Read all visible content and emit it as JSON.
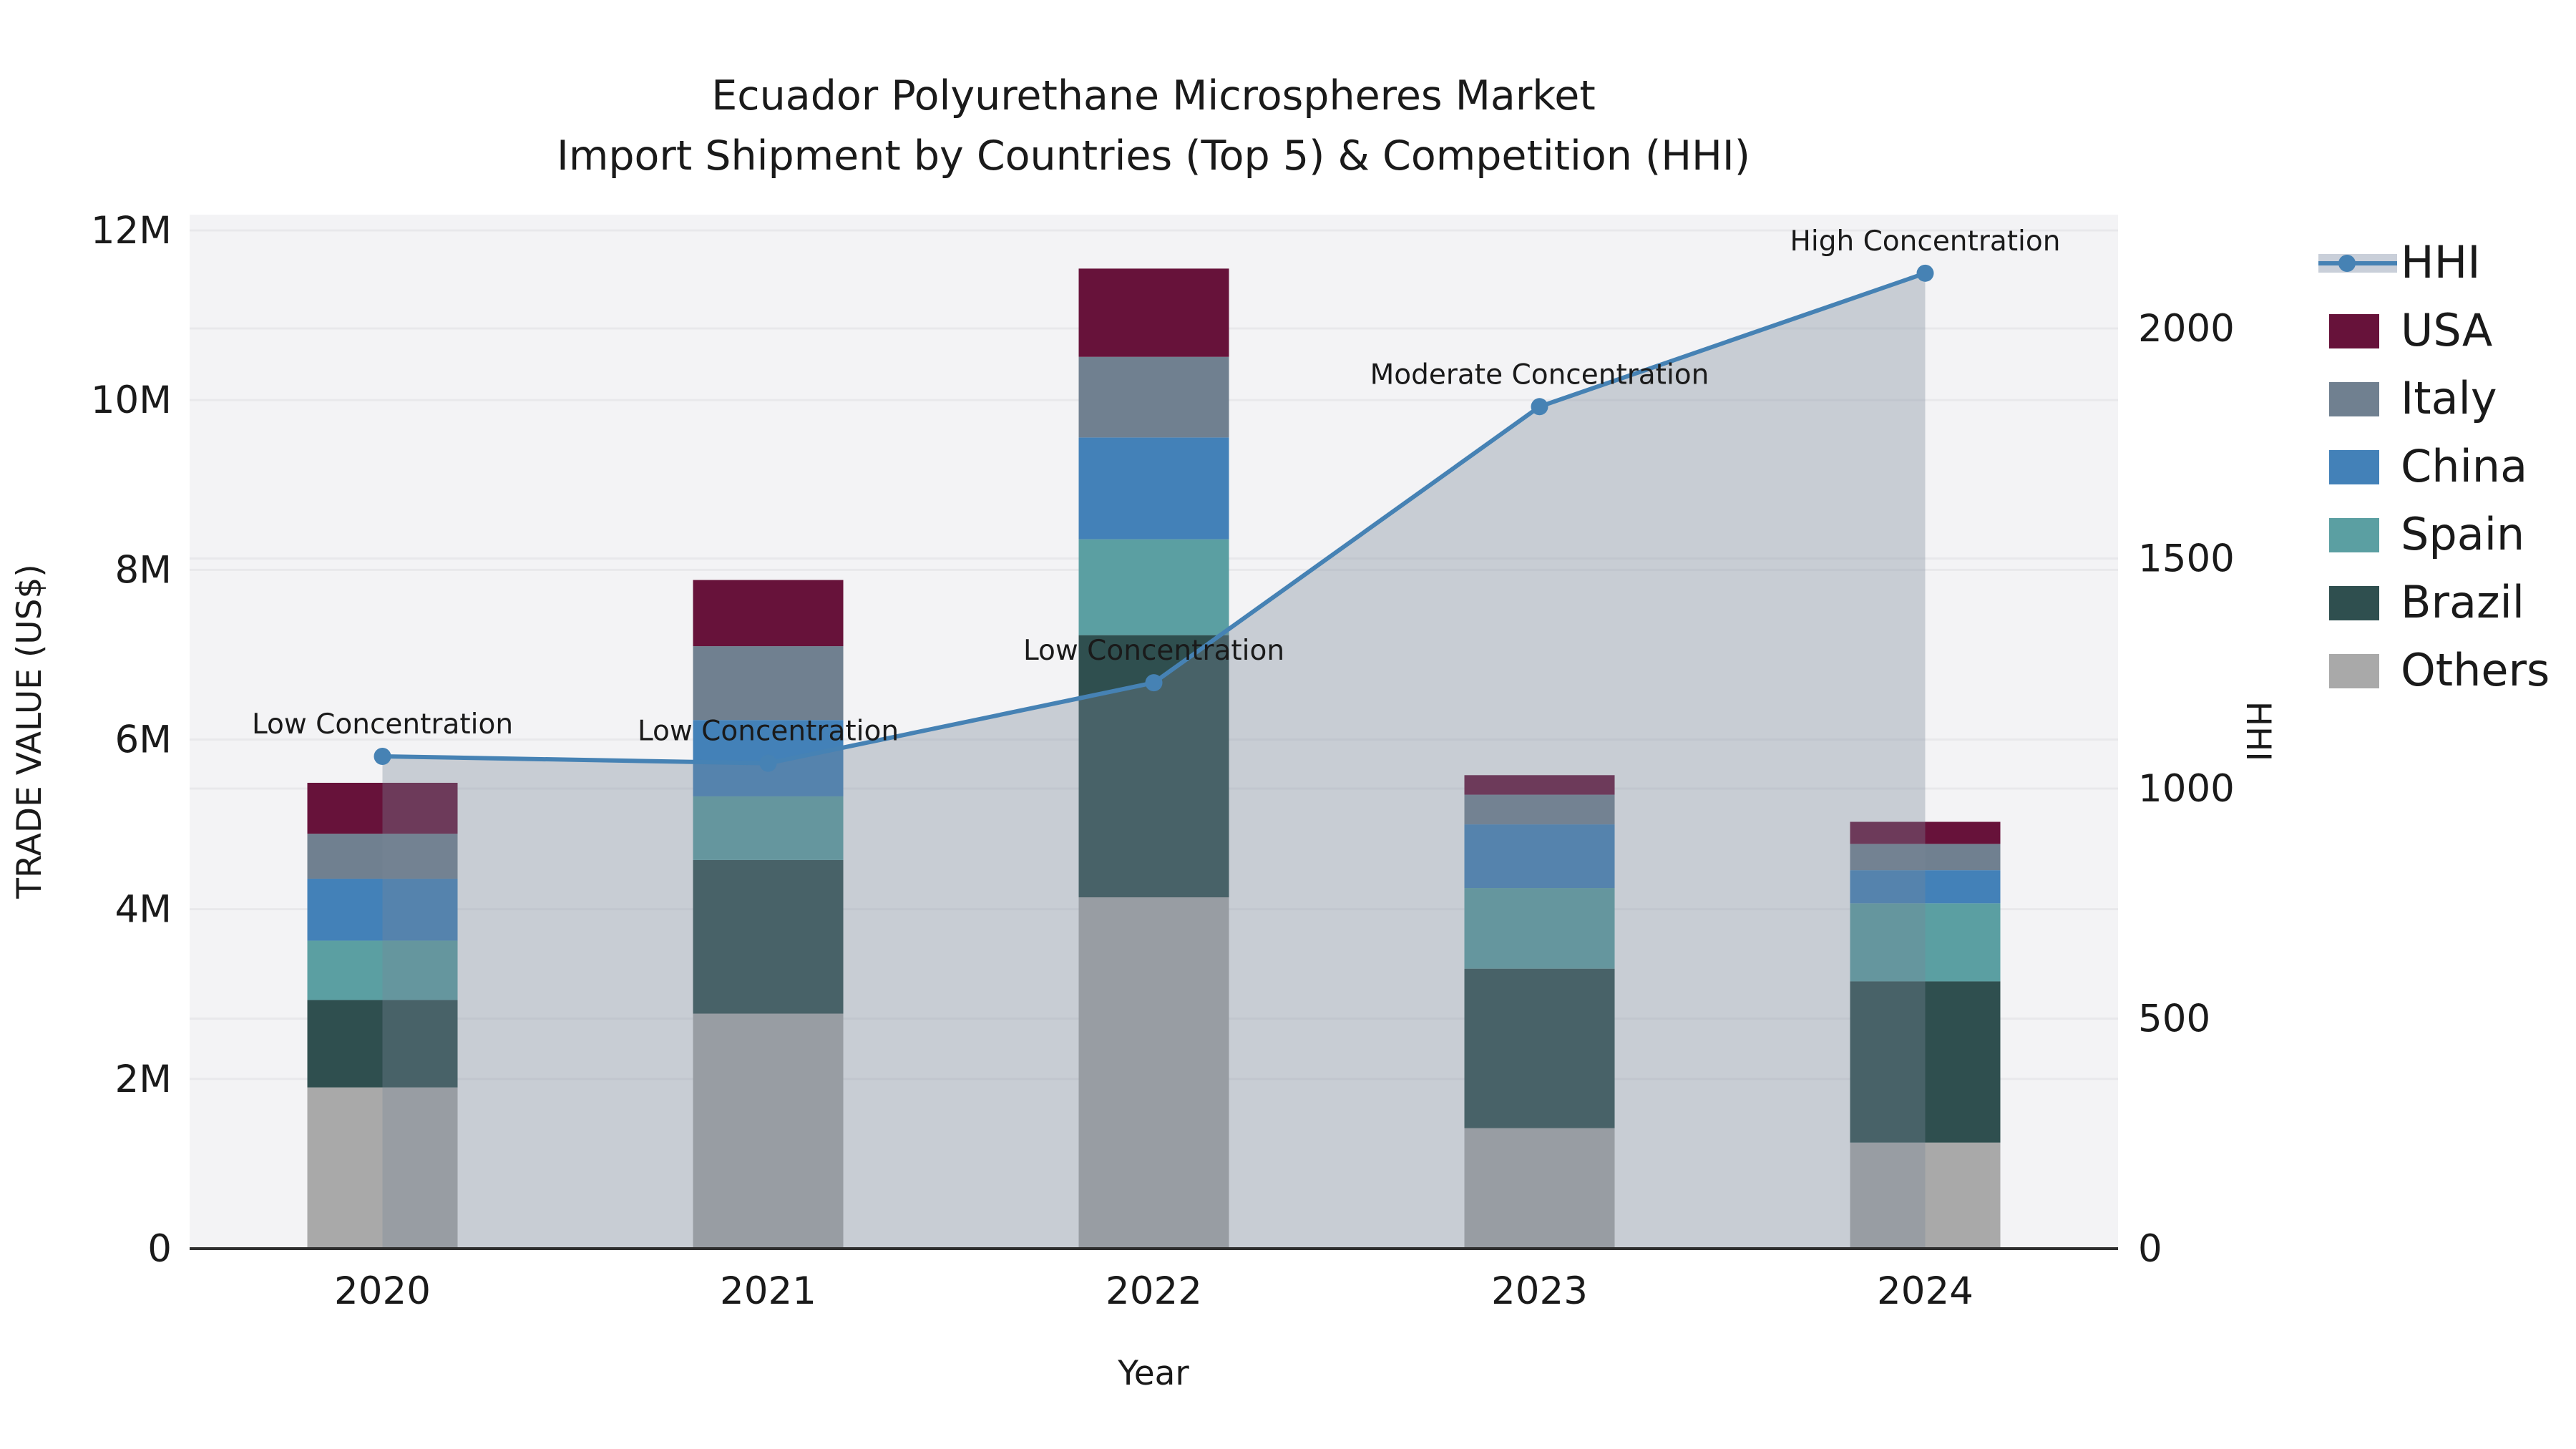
{
  "title": {
    "line1": "Ecuador Polyurethane Microspheres Market",
    "line2": "Import Shipment by Countries (Top 5) & Competition (HHI)"
  },
  "axes": {
    "x_label": "Year",
    "left_label": "TRADE VALUE (US$)",
    "right_label": "HHI",
    "left_ticks": [
      {
        "value": 0,
        "label": "0"
      },
      {
        "value": 2,
        "label": "2M"
      },
      {
        "value": 4,
        "label": "4M"
      },
      {
        "value": 6,
        "label": "6M"
      },
      {
        "value": 8,
        "label": "8M"
      },
      {
        "value": 10,
        "label": "10M"
      },
      {
        "value": 12,
        "label": "12M"
      }
    ],
    "right_ticks": [
      {
        "value": 0,
        "label": "0"
      },
      {
        "value": 500,
        "label": "500"
      },
      {
        "value": 1000,
        "label": "1000"
      },
      {
        "value": 1500,
        "label": "1500"
      },
      {
        "value": 2000,
        "label": "2000"
      }
    ]
  },
  "legend": {
    "hhi_label": "HHI"
  },
  "style": {
    "plot_bg": "#f3f3f5",
    "grid": "#e8e8eb",
    "spine": "#2e2e2e",
    "text": "#1a1a1a",
    "hhi_line": "#4682b4",
    "hhi_marker": "#4682b4",
    "hhi_area": "rgba(119,136,153,0.35)",
    "legend_band": "#c9cfd9"
  },
  "chart_data": {
    "type": "bar",
    "subtype": "stacked-bars-with-hhi-line-and-area-overlay",
    "title": "Ecuador Polyurethane Microspheres Market — Import Shipment by Countries (Top 5) & Competition (HHI)",
    "xlabel": "Year",
    "ylabel_left": "TRADE VALUE (US$)",
    "ylabel_right": "HHI",
    "categories": [
      "2020",
      "2021",
      "2022",
      "2023",
      "2024"
    ],
    "unit_left": "million US$",
    "unit_right": "HHI index points",
    "ylim_left_musd": [
      0,
      12
    ],
    "ylim_right_hhi": [
      0,
      2250
    ],
    "grid": "horizontal major gridlines for both axes",
    "legend_position": "right side, outside plot",
    "series": [
      {
        "name": "USA",
        "color": "#67123a",
        "values_musd": [
          0.6,
          0.78,
          1.04,
          0.23,
          0.26
        ]
      },
      {
        "name": "Italy",
        "color": "#708090",
        "values_musd": [
          0.53,
          0.87,
          0.95,
          0.35,
          0.31
        ]
      },
      {
        "name": "China",
        "color": "#4381b8",
        "values_musd": [
          0.73,
          0.9,
          1.2,
          0.75,
          0.39
        ]
      },
      {
        "name": "Spain",
        "color": "#5b9fa2",
        "values_musd": [
          0.7,
          0.75,
          1.13,
          0.95,
          0.92
        ]
      },
      {
        "name": "Brazil",
        "color": "#2f4f4f",
        "values_musd": [
          1.03,
          1.81,
          3.09,
          1.88,
          1.9
        ]
      },
      {
        "name": "Others",
        "color": "#a9a9a9",
        "values_musd": [
          1.9,
          2.77,
          4.14,
          1.42,
          1.25
        ]
      }
    ],
    "stack_order_bottom_to_top": [
      "Others",
      "Brazil",
      "Spain",
      "China",
      "Italy",
      "USA"
    ],
    "totals_musd": [
      5.49,
      7.88,
      11.55,
      5.58,
      5.03
    ],
    "line_series": {
      "name": "HHI",
      "values": [
        1070,
        1055,
        1230,
        1830,
        2120
      ]
    },
    "annotations": [
      {
        "category": "2020",
        "text": "Low Concentration"
      },
      {
        "category": "2021",
        "text": "Low Concentration"
      },
      {
        "category": "2022",
        "text": "Low Concentration"
      },
      {
        "category": "2023",
        "text": "Moderate Concentration"
      },
      {
        "category": "2024",
        "text": "High Concentration"
      }
    ]
  }
}
